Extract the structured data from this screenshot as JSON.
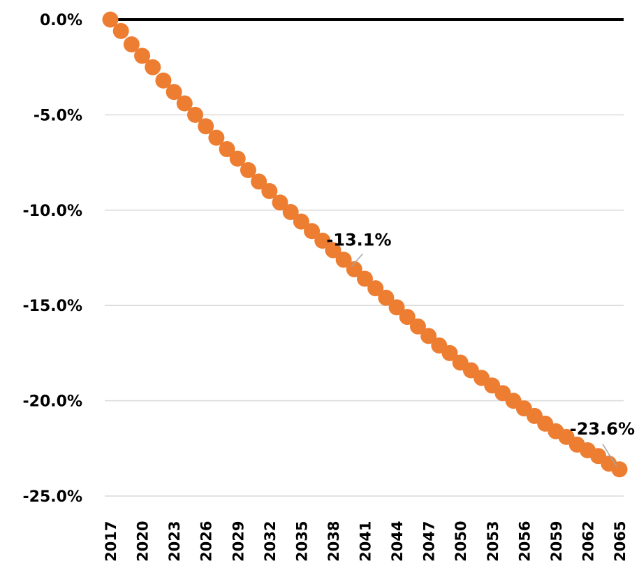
{
  "chart_data": {
    "type": "line",
    "title": "",
    "xlabel": "",
    "ylabel": "",
    "x": [
      2017,
      2018,
      2019,
      2020,
      2021,
      2022,
      2023,
      2024,
      2025,
      2026,
      2027,
      2028,
      2029,
      2030,
      2031,
      2032,
      2033,
      2034,
      2035,
      2036,
      2037,
      2038,
      2039,
      2040,
      2041,
      2042,
      2043,
      2044,
      2045,
      2046,
      2047,
      2048,
      2049,
      2050,
      2051,
      2052,
      2053,
      2054,
      2055,
      2056,
      2057,
      2058,
      2059,
      2060,
      2061,
      2062,
      2063,
      2064,
      2065
    ],
    "series": [
      {
        "color": "#ED7D31",
        "values": [
          0.0,
          -0.6,
          -1.3,
          -1.9,
          -2.5,
          -3.2,
          -3.8,
          -4.4,
          -5.0,
          -5.6,
          -6.2,
          -6.8,
          -7.3,
          -7.9,
          -8.5,
          -9.0,
          -9.6,
          -10.1,
          -10.6,
          -11.1,
          -11.6,
          -12.1,
          -12.6,
          -13.1,
          -13.6,
          -14.1,
          -14.6,
          -15.1,
          -15.6,
          -16.1,
          -16.6,
          -17.1,
          -17.5,
          -18.0,
          -18.4,
          -18.8,
          -19.2,
          -19.6,
          -20.0,
          -20.4,
          -20.8,
          -21.2,
          -21.6,
          -21.9,
          -22.3,
          -22.6,
          -22.9,
          -23.3,
          -23.6
        ]
      }
    ],
    "ylim": [
      -25,
      0
    ],
    "y_ticks": [
      "0.0%",
      "-5.0%",
      "-10.0%",
      "-15.0%",
      "-20.0%",
      "-25.0%"
    ],
    "y_tick_values": [
      0,
      -5,
      -10,
      -15,
      -20,
      -25
    ],
    "x_ticks": [
      "2017",
      "2020",
      "2023",
      "2026",
      "2029",
      "2032",
      "2035",
      "2038",
      "2041",
      "2044",
      "2047",
      "2050",
      "2053",
      "2056",
      "2059",
      "2062",
      "2065"
    ],
    "data_labels": [
      {
        "x": 2040,
        "text": "-13.1%"
      },
      {
        "x": 2065,
        "text": "-23.6%"
      }
    ],
    "grid": true,
    "legend": "none",
    "colors": {
      "marker": "#ED7D31",
      "zero_line": "#000000",
      "grid": "#D9D9D9",
      "leader": "#A6A6A6"
    }
  }
}
